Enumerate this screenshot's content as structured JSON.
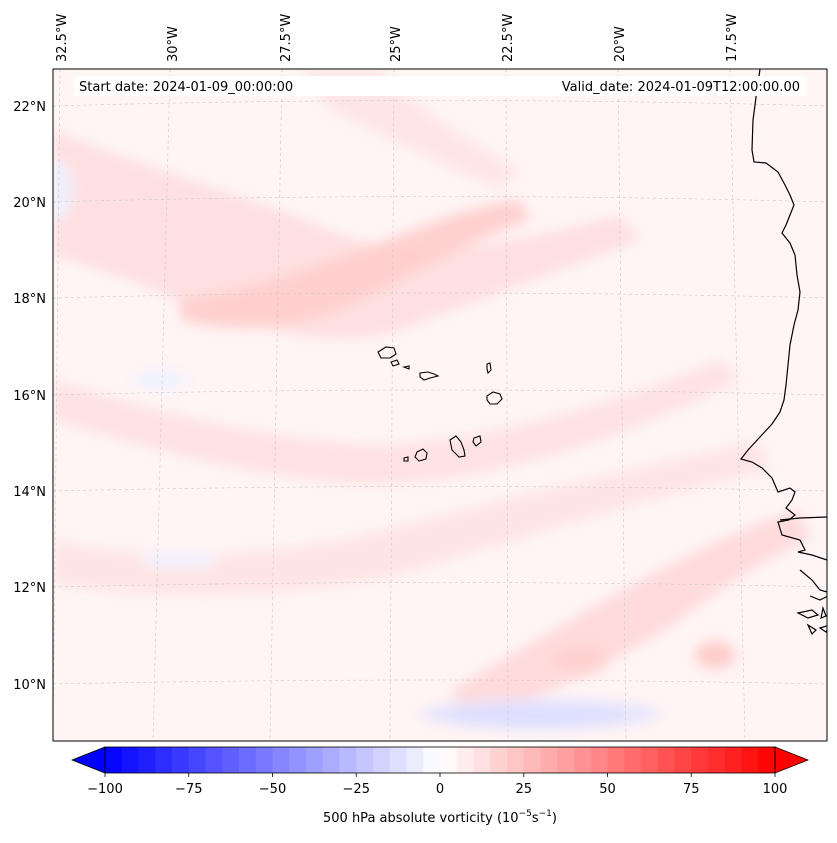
{
  "map": {
    "header": {
      "start_label": "Start date: 2024-01-09_00:00:00",
      "valid_label": "Valid_date: 2024-01-09T12:00:00.00"
    },
    "longitude_labels": [
      "32.5°W",
      "30°W",
      "27.5°W",
      "25°W",
      "22.5°W",
      "20°W",
      "17.5°W"
    ],
    "latitude_labels": [
      "22°N",
      "20°N",
      "18°N",
      "16°N",
      "14°N",
      "12°N",
      "10°N"
    ],
    "field": {
      "variable": "500 hPa absolute vorticity",
      "range": [
        -100,
        100
      ],
      "colormap": "bwr",
      "colors": {
        "negative_max": "#0000ff",
        "neutral": "#ffffff",
        "positive_max": "#ff0000",
        "coastline": "#000000",
        "gridline": "#c8c8c8"
      }
    },
    "features": [
      "coastline-west-africa",
      "cape-verde-islands"
    ]
  },
  "colorbar": {
    "label": "500 hPa absolute vorticity (10",
    "label_exp1": "−5",
    "label_mid": "s",
    "label_exp2": "−1",
    "label_end": ")",
    "ticks": [
      "−100",
      "−75",
      "−50",
      "−25",
      "0",
      "25",
      "50",
      "75",
      "100"
    ],
    "tick_values": [
      -100,
      -75,
      -50,
      -25,
      0,
      25,
      50,
      75,
      100
    ],
    "levels": 40
  }
}
